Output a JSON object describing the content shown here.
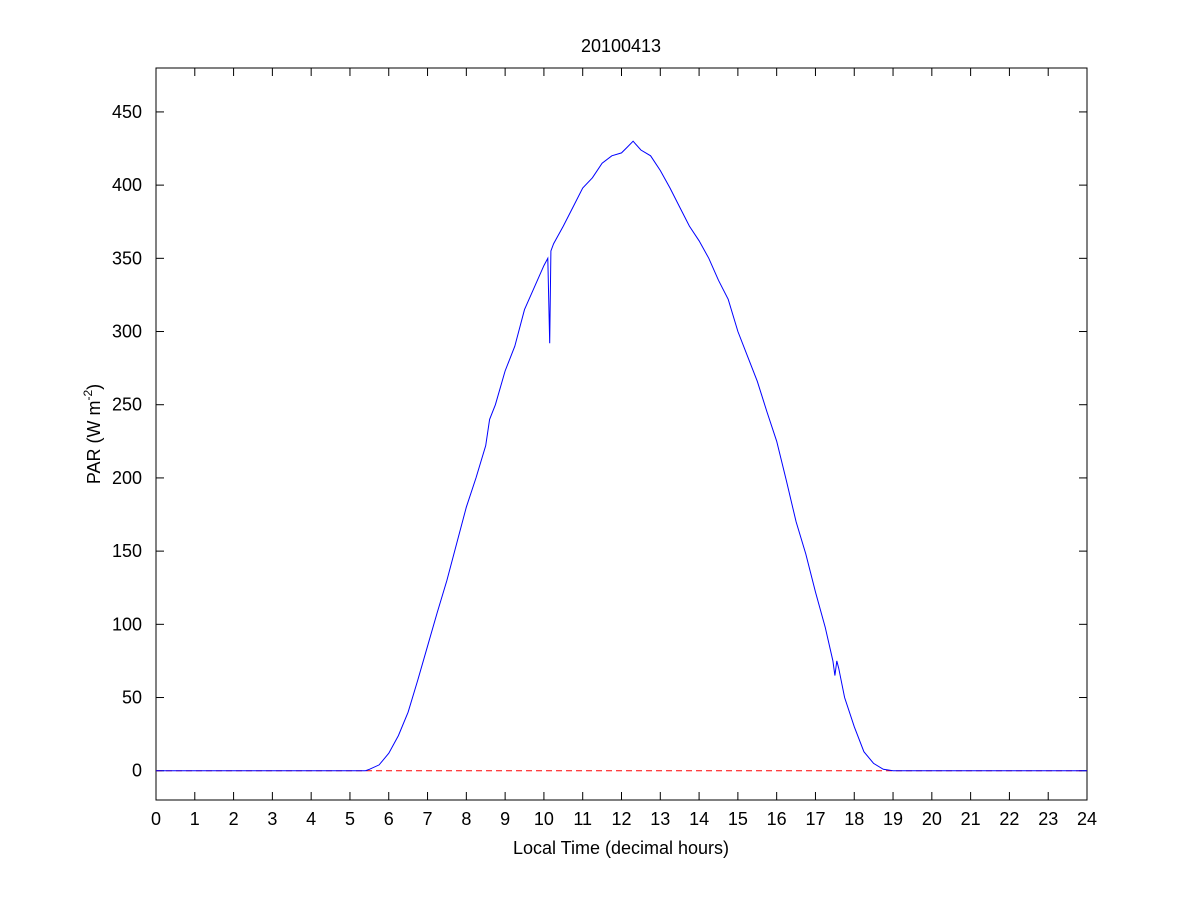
{
  "chart_data": {
    "type": "line",
    "title": "20100413",
    "xlabel": "Local Time (decimal hours)",
    "ylabel": "PAR (W m",
    "ylabel_superscript": "-2",
    "ylabel_close": ")",
    "xlim": [
      0,
      24
    ],
    "ylim": [
      -20,
      480
    ],
    "xticks": [
      0,
      1,
      2,
      3,
      4,
      5,
      6,
      7,
      8,
      9,
      10,
      11,
      12,
      13,
      14,
      15,
      16,
      17,
      18,
      19,
      20,
      21,
      22,
      23,
      24
    ],
    "yticks": [
      0,
      50,
      100,
      150,
      200,
      250,
      300,
      350,
      400,
      450
    ],
    "grid": false,
    "series": [
      {
        "color": "#0000ff",
        "x": [
          0,
          5.4,
          5.5,
          5.75,
          6,
          6.25,
          6.5,
          6.75,
          7,
          7.25,
          7.5,
          7.75,
          8,
          8.25,
          8.5,
          8.6,
          8.75,
          9,
          9.25,
          9.5,
          9.75,
          10,
          10.1,
          10.15,
          10.18,
          10.25,
          10.5,
          10.75,
          11,
          11.25,
          11.5,
          11.75,
          12,
          12.15,
          12.3,
          12.5,
          12.75,
          13,
          13.25,
          13.5,
          13.75,
          14,
          14.25,
          14.5,
          14.75,
          15,
          15.25,
          15.5,
          15.75,
          16,
          16.25,
          16.5,
          16.75,
          17,
          17.25,
          17.45,
          17.5,
          17.55,
          17.6,
          17.75,
          18,
          18.25,
          18.5,
          18.75,
          19,
          24
        ],
        "y": [
          0,
          0,
          1,
          4,
          12,
          24,
          40,
          62,
          85,
          108,
          130,
          155,
          180,
          200,
          222,
          240,
          250,
          273,
          290,
          315,
          330,
          345,
          350,
          292,
          355,
          360,
          372,
          385,
          398,
          405,
          415,
          420,
          422,
          426,
          430,
          424,
          420,
          410,
          398,
          385,
          372,
          362,
          350,
          335,
          322,
          300,
          283,
          266,
          245,
          225,
          198,
          170,
          148,
          122,
          98,
          75,
          65,
          75,
          70,
          50,
          30,
          13,
          5,
          1,
          0,
          0
        ]
      }
    ],
    "reference_line": {
      "y": 0,
      "color": "#ff0000",
      "style": "dashed"
    }
  }
}
